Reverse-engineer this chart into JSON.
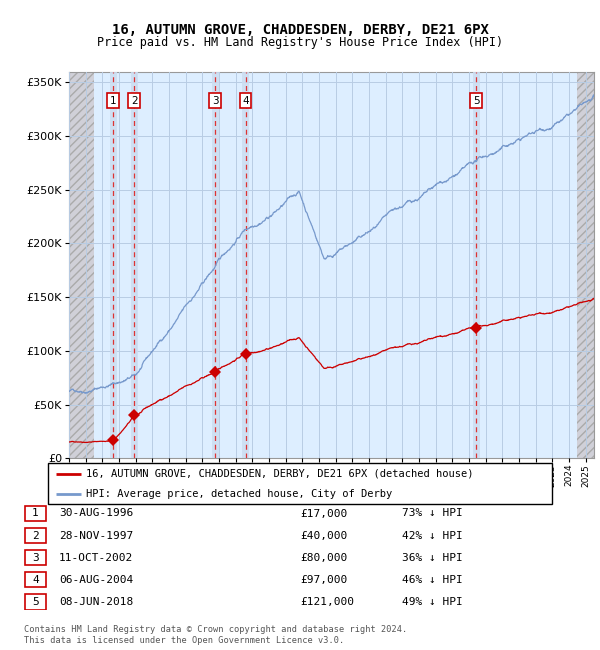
{
  "title1": "16, AUTUMN GROVE, CHADDESDEN, DERBY, DE21 6PX",
  "title2": "Price paid vs. HM Land Registry's House Price Index (HPI)",
  "sale_dates_num": [
    1996.66,
    1997.91,
    2002.78,
    2004.59,
    2018.44
  ],
  "sale_prices": [
    17000,
    40000,
    80000,
    97000,
    121000
  ],
  "sale_labels": [
    "1",
    "2",
    "3",
    "4",
    "5"
  ],
  "legend_line1": "16, AUTUMN GROVE, CHADDESDEN, DERBY, DE21 6PX (detached house)",
  "legend_line2": "HPI: Average price, detached house, City of Derby",
  "table_rows": [
    [
      "1",
      "30-AUG-1996",
      "£17,000",
      "73% ↓ HPI"
    ],
    [
      "2",
      "28-NOV-1997",
      "£40,000",
      "42% ↓ HPI"
    ],
    [
      "3",
      "11-OCT-2002",
      "£80,000",
      "36% ↓ HPI"
    ],
    [
      "4",
      "06-AUG-2004",
      "£97,000",
      "46% ↓ HPI"
    ],
    [
      "5",
      "08-JUN-2018",
      "£121,000",
      "49% ↓ HPI"
    ]
  ],
  "footer": "Contains HM Land Registry data © Crown copyright and database right 2024.\nThis data is licensed under the Open Government Licence v3.0.",
  "ylim": [
    0,
    360000
  ],
  "xlim": [
    1994.0,
    2025.5
  ],
  "chart_bg": "#ddeeff",
  "hatch_facecolor": "#c8c8d8",
  "hatch_left_end": 1995.5,
  "hatch_right_start": 2024.5,
  "grid_color": "#b8cce4",
  "sale_line_color": "#cc0000",
  "hpi_line_color": "#7799cc",
  "highlight_bg": "#ccddf0",
  "dashed_line_color": "#dd3333",
  "y_ticks": [
    0,
    50000,
    100000,
    150000,
    200000,
    250000,
    300000,
    350000
  ]
}
